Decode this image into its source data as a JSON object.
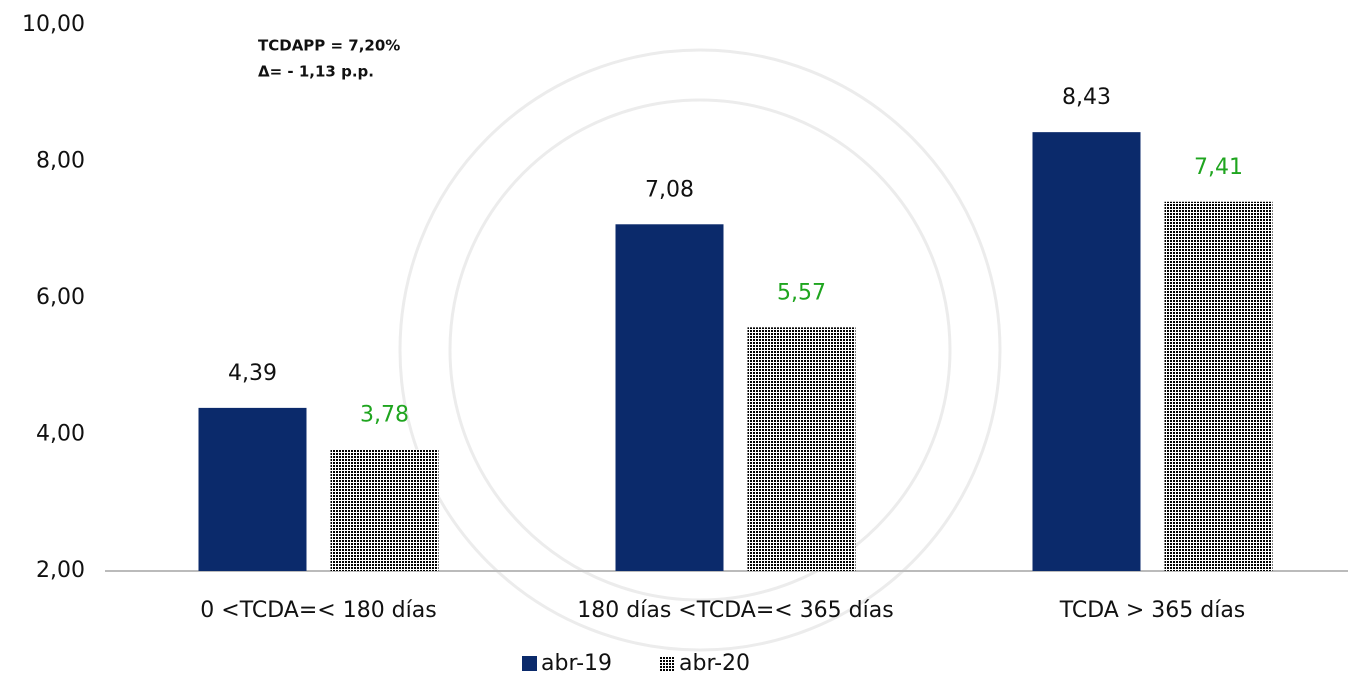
{
  "chart_data": {
    "type": "bar",
    "annotations": [
      "TCDAPP = 7,20%",
      "Δ=  - 1,13 p.p."
    ],
    "categories": [
      "0 <TCDA=< 180 días",
      "180 días <TCDA=< 365 días",
      "TCDA > 365 días"
    ],
    "series": [
      {
        "name": "abr-19",
        "color": "#0b2a6b",
        "values": [
          4.39,
          7.08,
          8.43
        ],
        "value_labels": [
          "4,39",
          "7,08",
          "8,43"
        ]
      },
      {
        "name": "abr-20",
        "color": "#1fa51f",
        "values": [
          3.78,
          5.57,
          7.41
        ],
        "value_labels": [
          "3,78",
          "5,57",
          "7,41"
        ]
      }
    ],
    "ylim": [
      2,
      10
    ],
    "yticks": [
      {
        "value": 2,
        "label": "2,00"
      },
      {
        "value": 4,
        "label": "4,00"
      },
      {
        "value": 6,
        "label": "6,00"
      },
      {
        "value": 8,
        "label": "8,00"
      },
      {
        "value": 10,
        "label": "10,00"
      }
    ],
    "legend": "bottom"
  }
}
